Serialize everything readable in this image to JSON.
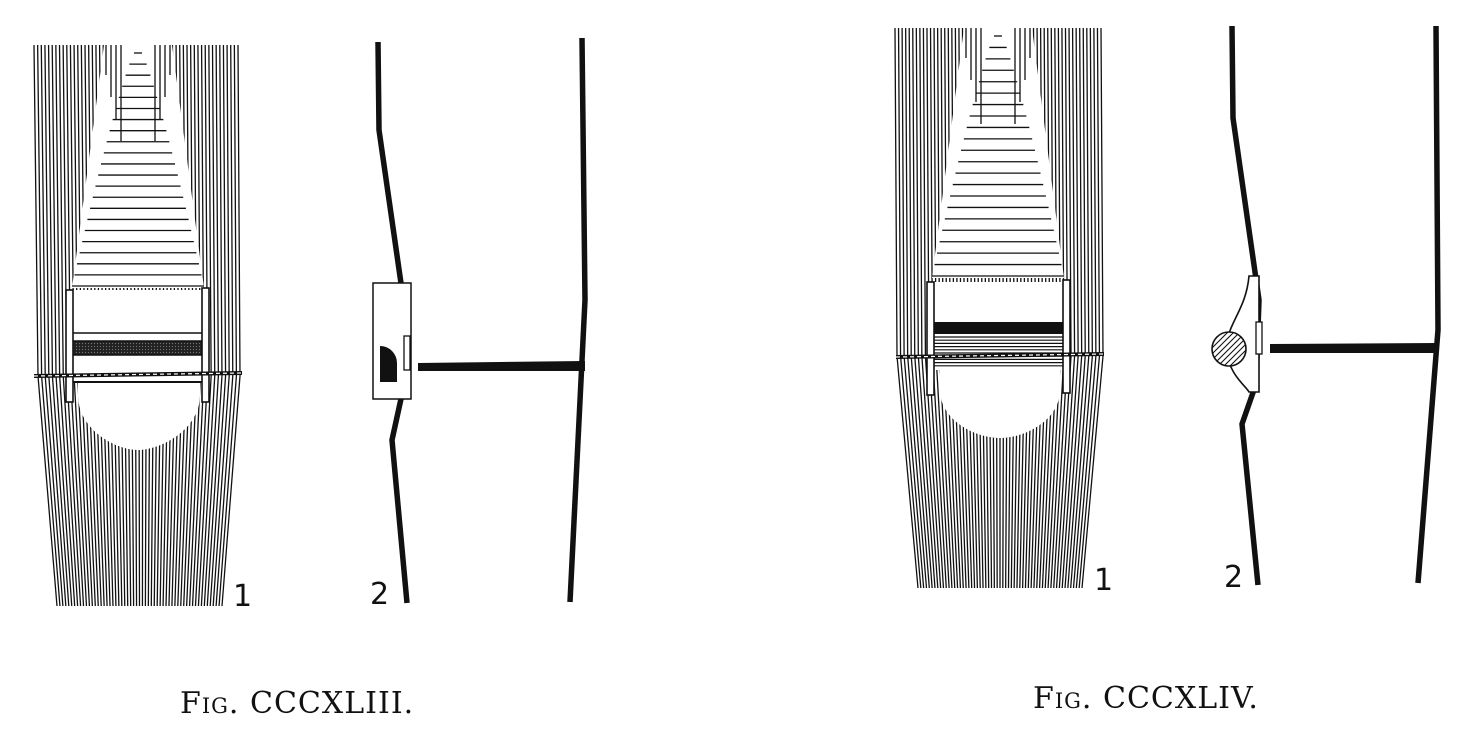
{
  "figures": [
    {
      "caption_prefix": "Fig.",
      "caption_numeral": "CCCXLIII.",
      "view_labels": [
        "1",
        "2"
      ],
      "detail_shape": "half-circle-on-rectangle"
    },
    {
      "caption_prefix": "Fig.",
      "caption_numeral": "CCCXLIV.",
      "view_labels": [
        "1",
        "2"
      ],
      "detail_shape": "hatched-circle-on-curved-plate"
    }
  ],
  "colors": {
    "ink": "#111111",
    "paper": "#ffffff"
  }
}
